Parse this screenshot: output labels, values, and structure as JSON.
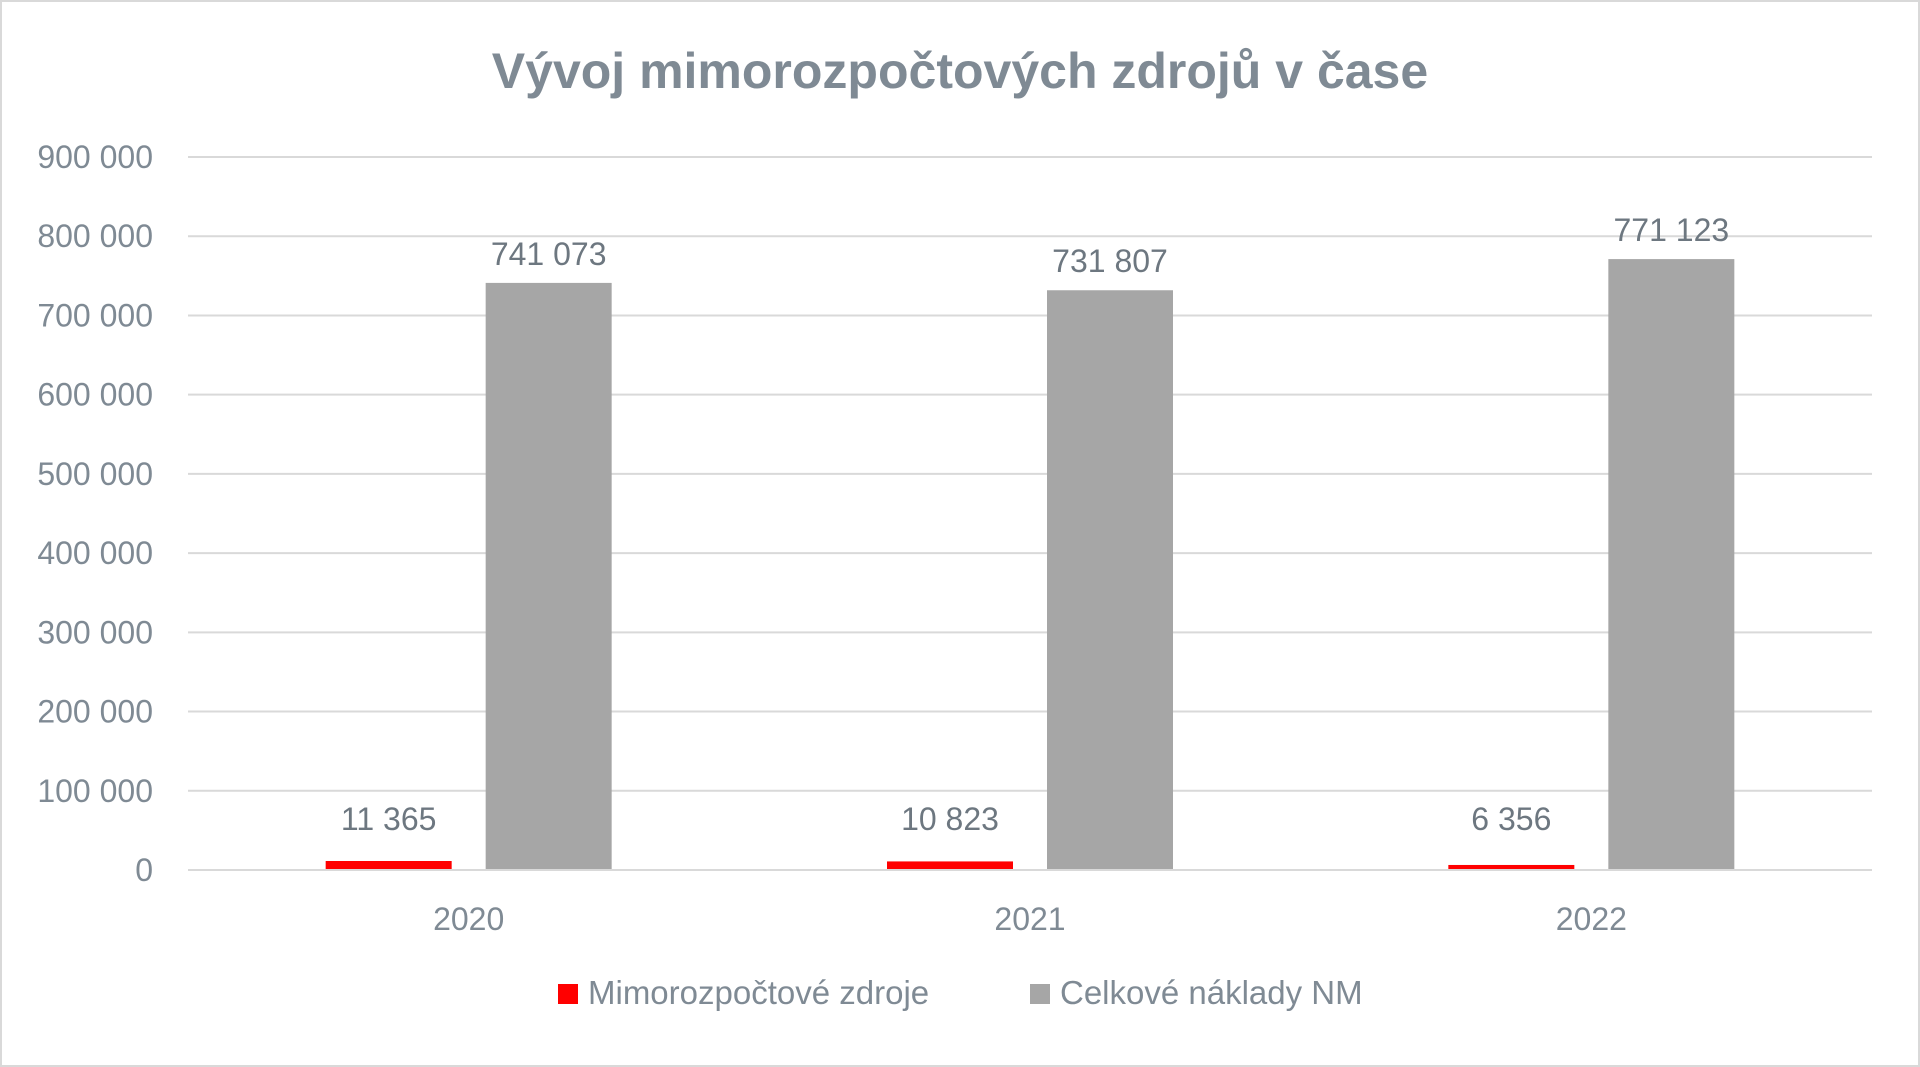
{
  "chart_data": {
    "type": "bar",
    "title": "Vývoj mimorozpočtových zdrojů v čase",
    "categories": [
      "2020",
      "2021",
      "2022"
    ],
    "series": [
      {
        "name": "Mimorozpočtové zdroje",
        "color": "#ff0000",
        "values": [
          11365,
          10823,
          6356
        ],
        "labels": [
          "11 365",
          "10 823",
          "6 356"
        ]
      },
      {
        "name": "Celkové náklady NM",
        "color": "#a6a6a6",
        "values": [
          741073,
          731807,
          771123
        ],
        "labels": [
          "741 073",
          "731 807",
          "771 123"
        ]
      }
    ],
    "ylim": [
      0,
      900000
    ],
    "yticks": [
      0,
      100000,
      200000,
      300000,
      400000,
      500000,
      600000,
      700000,
      800000,
      900000
    ],
    "ytick_labels": [
      "0",
      "100 000",
      "200 000",
      "300 000",
      "400 000",
      "500 000",
      "600 000",
      "700 000",
      "800 000",
      "900 000"
    ],
    "grid": true,
    "legend_position": "bottom",
    "gridline_color": "#d9d9d9"
  }
}
